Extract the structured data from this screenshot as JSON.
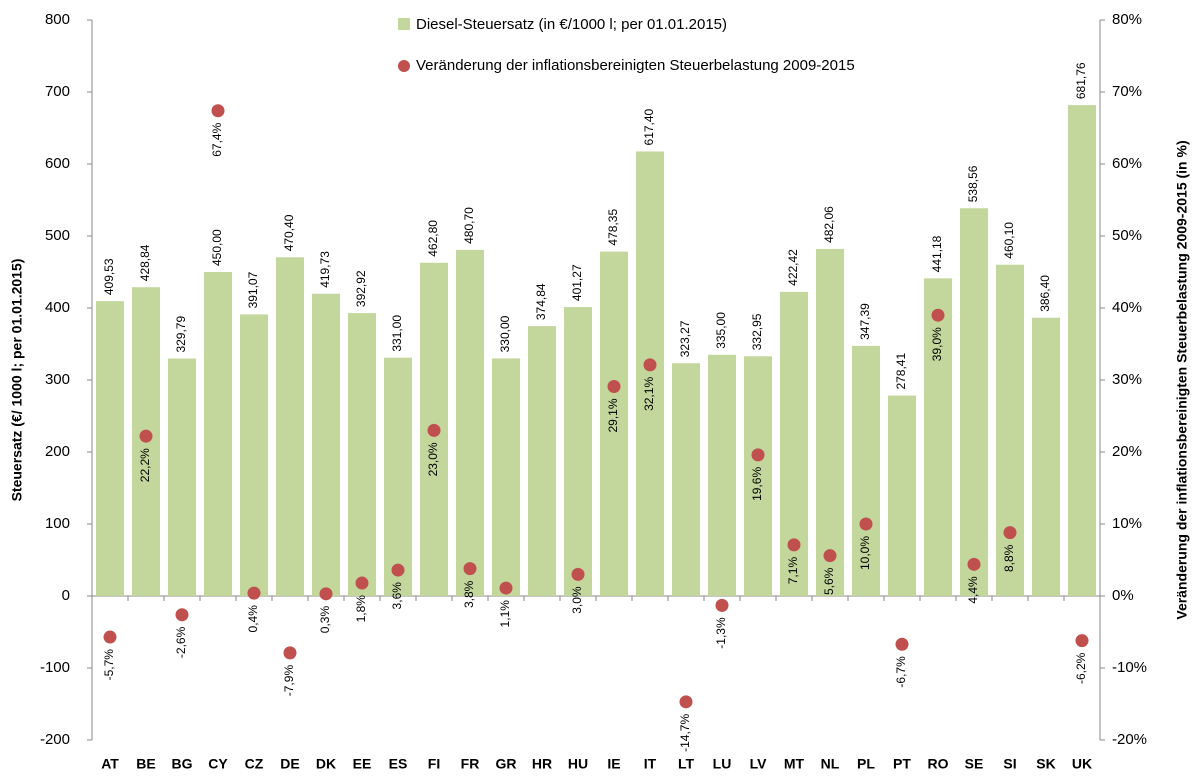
{
  "chart_data": {
    "type": "bar",
    "ylabel": "Steuersatz  (€/ 1000 l; per 01.01.2015)",
    "y2label": "Veränderung der inflationsbereinigten Steuerbelastung  2009-2015 (in %)",
    "categories": [
      "AT",
      "BE",
      "BG",
      "CY",
      "CZ",
      "DE",
      "DK",
      "EE",
      "ES",
      "FI",
      "FR",
      "GR",
      "HR",
      "HU",
      "IE",
      "IT",
      "LT",
      "LU",
      "LV",
      "MT",
      "NL",
      "PL",
      "PT",
      "RO",
      "SE",
      "SI",
      "SK",
      "UK"
    ],
    "series": [
      {
        "name": "Diesel-Steuersatz (in €/1000 l; per 01.01.2015)",
        "type": "bar",
        "color": "#c3d69b",
        "values": [
          409.53,
          428.84,
          329.79,
          450.0,
          391.07,
          470.4,
          419.73,
          392.92,
          331.0,
          462.8,
          480.7,
          330.0,
          374.84,
          401.27,
          478.35,
          617.4,
          323.27,
          335.0,
          332.95,
          422.42,
          482.06,
          347.39,
          278.41,
          441.18,
          538.56,
          460.1,
          386.4,
          681.76
        ],
        "value_labels": [
          "409,53",
          "428,84",
          "329,79",
          "450,00",
          "391,07",
          "470,40",
          "419,73",
          "392,92",
          "331,00",
          "462,80",
          "480,70",
          "330,00",
          "374,84",
          "401,27",
          "478,35",
          "617,40",
          "323,27",
          "335,00",
          "332,95",
          "422,42",
          "482,06",
          "347,39",
          "278,41",
          "441,18",
          "538,56",
          "460,10",
          "386,40",
          "681,76"
        ]
      },
      {
        "name": "Veränderung der inflationsbereinigten Steuerbelastung 2009-2015",
        "type": "scatter",
        "axis": "y2",
        "color": "#c0504d",
        "values": [
          -5.7,
          22.2,
          -2.6,
          67.4,
          0.4,
          -7.9,
          0.3,
          1.8,
          3.6,
          23.0,
          3.8,
          1.1,
          null,
          3.0,
          29.1,
          32.1,
          -14.7,
          -1.3,
          19.6,
          7.1,
          5.6,
          10.0,
          -6.7,
          39.0,
          4.4,
          8.8,
          null,
          -6.2
        ],
        "value_labels": [
          "-5,7%",
          "22,2%",
          "-2,6%",
          "67,4%",
          "0,4%",
          "-7,9%",
          "0,3%",
          "1,8%",
          "3,6%",
          "23,0%",
          "3,8%",
          "1,1%",
          null,
          "3,0%",
          "29,1%",
          "32,1%",
          "-14,7%",
          "-1,3%",
          "19,6%",
          "7,1%",
          "5,6%",
          "10,0%",
          "-6,7%",
          "39,0%",
          "4,4%",
          "8,8%",
          null,
          "-6,2%"
        ]
      }
    ],
    "ylim": [
      -200,
      800
    ],
    "yticks": [
      -200,
      -100,
      0,
      100,
      200,
      300,
      400,
      500,
      600,
      700,
      800
    ],
    "y2lim": [
      -20,
      80
    ],
    "y2ticks": [
      {
        "value": -20,
        "label": "-20%"
      },
      {
        "value": -10,
        "label": "-10%"
      },
      {
        "value": 0,
        "label": "0%"
      },
      {
        "value": 10,
        "label": "10%"
      },
      {
        "value": 20,
        "label": "20%"
      },
      {
        "value": 30,
        "label": "30%"
      },
      {
        "value": 40,
        "label": "40%"
      },
      {
        "value": 50,
        "label": "50%"
      },
      {
        "value": 60,
        "label": "60%"
      },
      {
        "value": 70,
        "label": "70%"
      },
      {
        "value": 80,
        "label": "80%"
      }
    ]
  }
}
